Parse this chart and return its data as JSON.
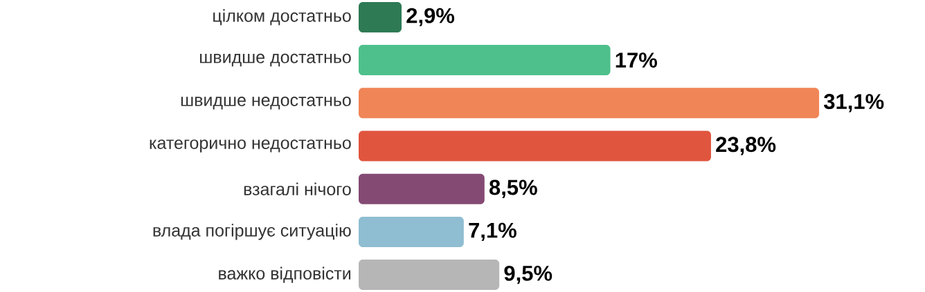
{
  "chart_data": {
    "type": "bar",
    "orientation": "horizontal",
    "categories": [
      "цілком достатньо",
      "швидше достатньо",
      "швидше недостатньо",
      "категорично недостатньо",
      "взагалі нічого",
      "влада погіршує ситуацію",
      "важко відповісти"
    ],
    "values": [
      2.9,
      17,
      31.1,
      23.8,
      8.5,
      7.1,
      9.5
    ],
    "value_labels": [
      "2,9%",
      "17%",
      "31,1%",
      "23,8%",
      "8,5%",
      "7,1%",
      "9,5%"
    ],
    "colors": [
      "#2e7a55",
      "#4dc08b",
      "#f08558",
      "#e0553e",
      "#844a74",
      "#8fbdd1",
      "#b6b6b6"
    ]
  }
}
